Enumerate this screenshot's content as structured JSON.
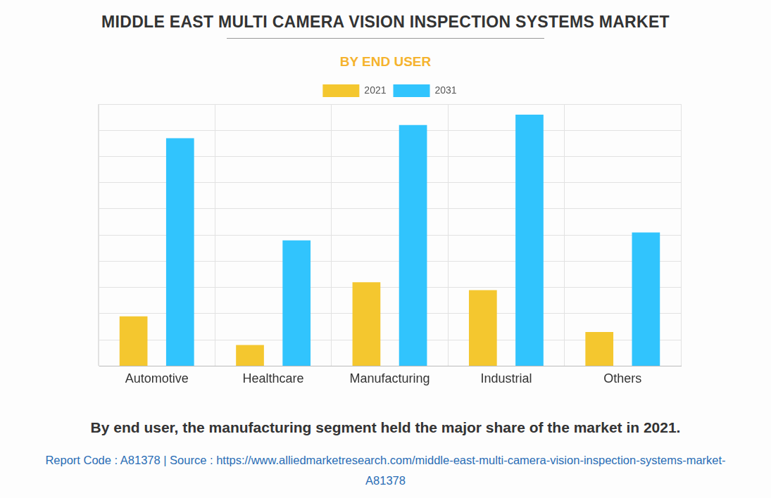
{
  "chart_data": {
    "type": "bar",
    "title": "MIDDLE EAST MULTI CAMERA VISION INSPECTION SYSTEMS MARKET",
    "subtitle": "BY END USER",
    "caption": "By end user, the manufacturing segment held the major share of the market in 2021.",
    "source_note": "Report Code : A81378  |  Source : https://www.alliedmarketresearch.com/middle-east-multi-camera-vision-inspection-systems-market-A81378",
    "categories": [
      "Automotive",
      "Healthcare",
      "Manufacturing",
      "Industrial",
      "Others"
    ],
    "series": [
      {
        "name": "2021",
        "color": "#f4c72f",
        "values": [
          1.9,
          0.8,
          3.2,
          2.9,
          1.3
        ]
      },
      {
        "name": "2031",
        "color": "#31c4fd",
        "values": [
          8.7,
          4.8,
          9.2,
          9.6,
          5.1
        ]
      }
    ],
    "ylim": [
      0,
      10
    ],
    "yticks": [
      0,
      1,
      2,
      3,
      4,
      5,
      6,
      7,
      8,
      9,
      10
    ],
    "grid": true,
    "legend": "top",
    "tick_labels": "x"
  }
}
